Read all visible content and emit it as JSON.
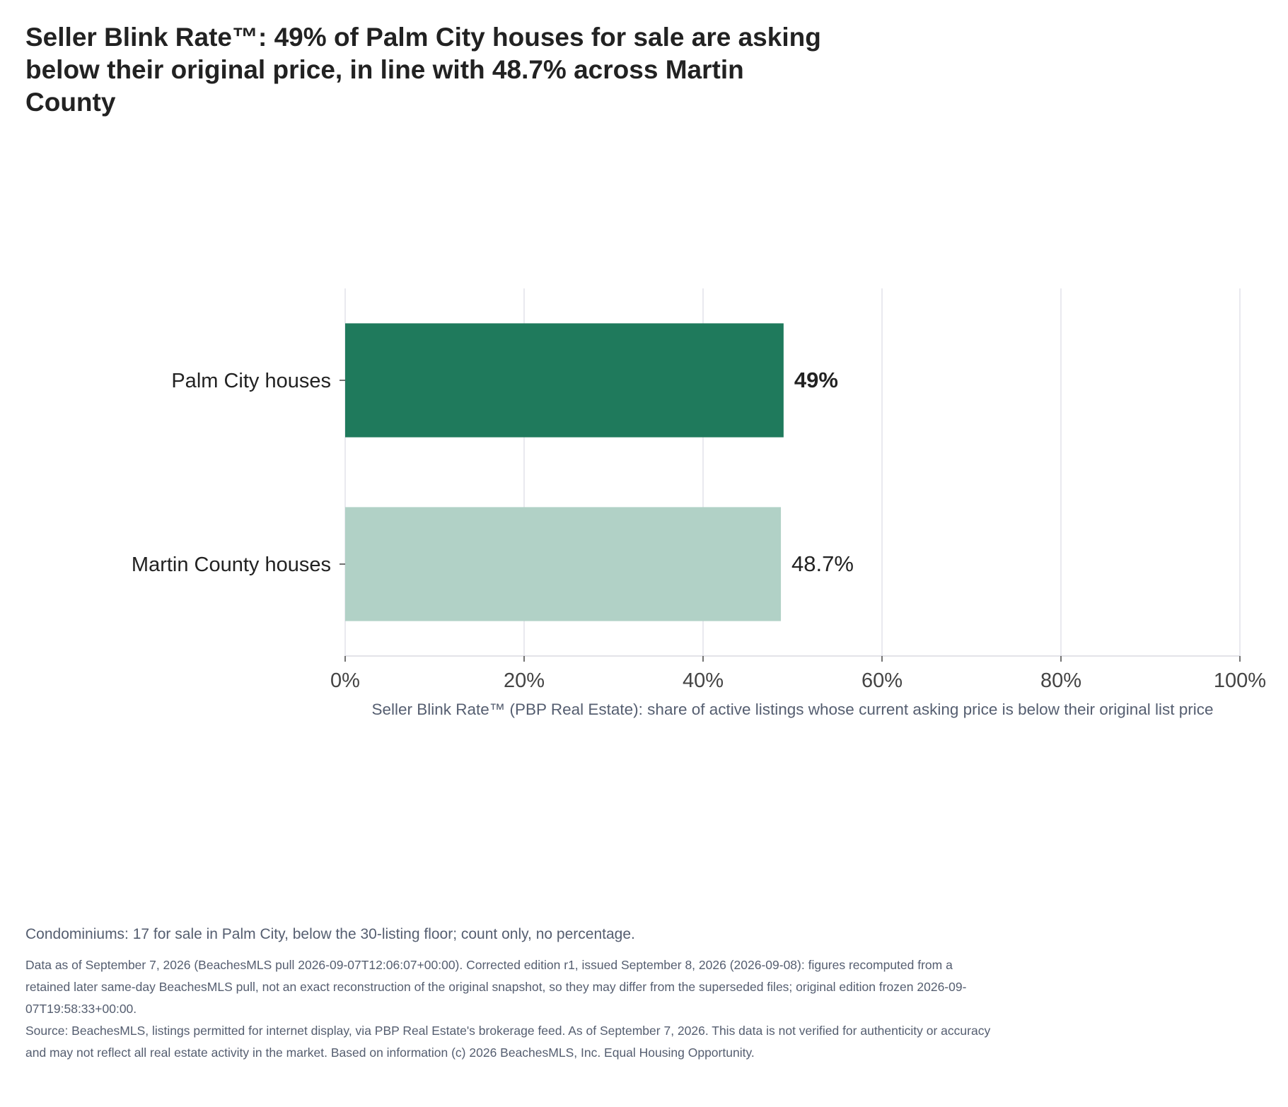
{
  "title": "Seller Blink Rate™: 49% of Palm City houses for sale are asking below their original price, in line with 48.7% across Martin County",
  "chart_data": {
    "type": "bar",
    "orientation": "horizontal",
    "categories": [
      "Palm City houses",
      "Martin County houses"
    ],
    "values": [
      49,
      48.7
    ],
    "value_labels": [
      "49%",
      "48.7%"
    ],
    "bar_colors": [
      "#1f7a5c",
      "#b1d1c6"
    ],
    "xlabel": "Seller Blink Rate™ (PBP Real Estate): share of active listings whose current asking price is below their original list price",
    "ylabel": "",
    "xlim": [
      0,
      100
    ],
    "x_ticks": [
      0,
      20,
      40,
      60,
      80,
      100
    ],
    "x_tick_labels": [
      "0%",
      "20%",
      "40%",
      "60%",
      "80%",
      "100%"
    ],
    "grid": true
  },
  "footer": {
    "condo_note": "Condominiums: 17 for sale in Palm City, below the 30-listing floor; count only, no percentage.",
    "data_note": "Data as of September 7, 2026 (BeachesMLS pull 2026-09-07T12:06:07+00:00). Corrected edition r1, issued September 8, 2026 (2026-09-08): figures recomputed from a retained later same-day BeachesMLS pull, not an exact reconstruction of the original snapshot, so they may differ from the superseded files; original edition frozen 2026-09-07T19:58:33+00:00.",
    "source_note": "Source: BeachesMLS, listings permitted for internet display, via PBP Real Estate's brokerage feed. As of September 7, 2026. This data is not verified for authenticity or accuracy and may not reflect all real estate activity in the market. Based on information (c) 2026 BeachesMLS, Inc. Equal Housing Opportunity."
  }
}
